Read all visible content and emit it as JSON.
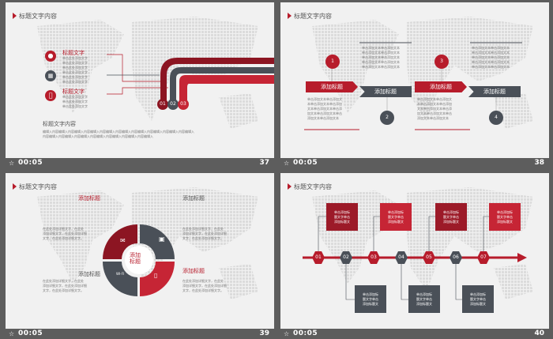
{
  "colors": {
    "red": "#b71c2b",
    "dark": "#4a5058",
    "bg": "#f1f1f1",
    "frame": "#5d5d5d"
  },
  "slides": [
    {
      "title": "标题文字内容",
      "time": "00:05",
      "number": "37",
      "items": [
        {
          "label": "标题文字",
          "text": "单击此处添加文字\n单击此处添加文字\n单击此处添加文字",
          "icon": "android-icon"
        },
        {
          "label": "标题文字",
          "text": "单击此处添加文字\n单击此处添加文字\n单击此处添加文字",
          "icon": "windows-icon"
        },
        {
          "label": "标题文字",
          "text": "单击此处添加文字\n单击此处添加文字\n单击此处添加文字",
          "icon": "apple-icon"
        }
      ],
      "steps": [
        "01",
        "02",
        "03"
      ],
      "content_title": "标题文字内容",
      "content_text": "编辑入内容编辑入内容编辑入内容编辑入内容编辑入内容编辑入内容编辑入内容编辑入内容编辑入内容编辑入\n内容编辑入内容编辑入内容编辑入内容编辑入内容编辑入内容编辑入内容编辑入"
    },
    {
      "title": "标题文字内容",
      "time": "00:05",
      "number": "38",
      "ribbons": [
        "添加标题",
        "添加标题",
        "添加标题",
        "添加标题"
      ],
      "badges": [
        "1",
        "2",
        "3",
        "4"
      ],
      "top_text": "单击添加文本单击添加文本\n单击添加文本单击添加文本\n单击添加文本单击添加文本\n单击添加文本单击添加文本\n单击添加文本单击添加文本",
      "bottom_text": "单击添加文本单击添加文\n本单击添加文本单击添加\n文本单击添加文本单击添\n加文本单击添加文本单击\n添加文本单击添加文本"
    },
    {
      "title": "标题文字内容",
      "time": "00:05",
      "number": "39",
      "center": "添加\n标题",
      "labels": [
        "添加标题",
        "添加标题",
        "添加标题",
        "添加标题"
      ],
      "text": "在此处添加详细文字，在此处\n添加详细文字，在此处添加详细\n文字，在此处添加详细文字。",
      "wifi_label": "WI-FI"
    },
    {
      "title": "标题文字内容",
      "time": "00:05",
      "number": "40",
      "steps": [
        "01",
        "02",
        "03",
        "04",
        "05",
        "06",
        "07"
      ],
      "box_text": "单击添加标\n题文字单击\n添加标题文"
    }
  ]
}
